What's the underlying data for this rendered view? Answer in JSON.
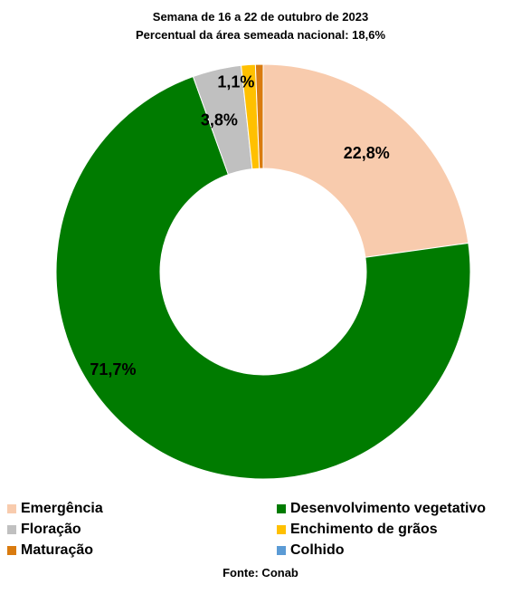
{
  "chart_data": {
    "type": "pie",
    "title": "Semana de 16 a 22 de outubro de 2023",
    "subtitle": "Percentual da área semeada nacional: 18,6%",
    "slices": [
      {
        "label": "Emergência",
        "value": 22.8,
        "display": "22,8%",
        "color": "#f8cbad"
      },
      {
        "label": "Desenvolvimento vegetativo",
        "value": 71.7,
        "display": "71,7%",
        "color": "#007b00"
      },
      {
        "label": "Floração",
        "value": 3.8,
        "display": "3,8%",
        "color": "#c0c0c0"
      },
      {
        "label": "Enchimento de grãos",
        "value": 1.1,
        "display": "1,1%",
        "color": "#ffc000"
      },
      {
        "label": "Maturação",
        "value": 0.6,
        "display": "",
        "color": "#d97b0f"
      },
      {
        "label": "Colhido",
        "value": 0,
        "display": "",
        "color": "#5b9bd5"
      }
    ],
    "legend_placement": "bottom",
    "source": "Fonte: Conab"
  }
}
